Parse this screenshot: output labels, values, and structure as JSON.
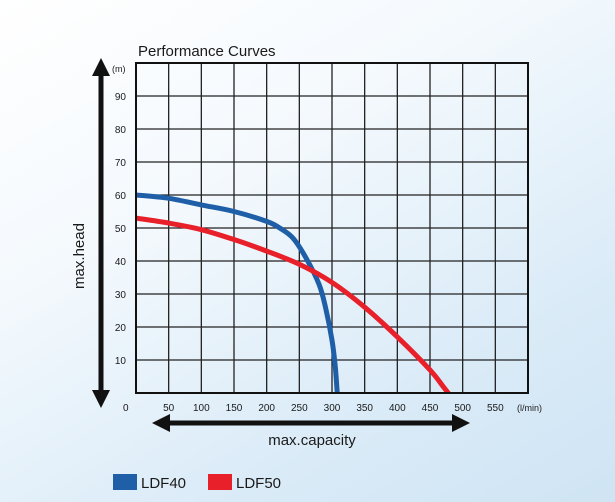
{
  "chart_data": {
    "type": "line",
    "title": "Performance Curves",
    "xlabel": "max.capacity",
    "ylabel": "max.head",
    "x_unit": "(l/min)",
    "y_unit": "(m)",
    "origin_label": "0",
    "xlim": [
      0,
      600
    ],
    "ylim": [
      0,
      100
    ],
    "x_ticks": [
      50,
      100,
      150,
      200,
      250,
      300,
      350,
      400,
      450,
      500,
      550
    ],
    "y_ticks": [
      10,
      20,
      30,
      40,
      50,
      60,
      70,
      80,
      90
    ],
    "grid": true,
    "series": [
      {
        "name": "LDF40",
        "color": "#1f5fa8",
        "x": [
          0,
          50,
          100,
          150,
          200,
          220,
          240,
          260,
          280,
          290,
          300,
          305,
          308
        ],
        "y": [
          60,
          59,
          57,
          55,
          52,
          50,
          47,
          41,
          33,
          26,
          16,
          8,
          0
        ]
      },
      {
        "name": "LDF50",
        "color": "#e8202a",
        "x": [
          0,
          50,
          100,
          150,
          200,
          250,
          300,
          350,
          400,
          450,
          470,
          478
        ],
        "y": [
          53,
          51.5,
          49.5,
          46.5,
          43,
          39,
          33.5,
          26,
          17,
          7,
          2,
          0
        ]
      }
    ]
  }
}
